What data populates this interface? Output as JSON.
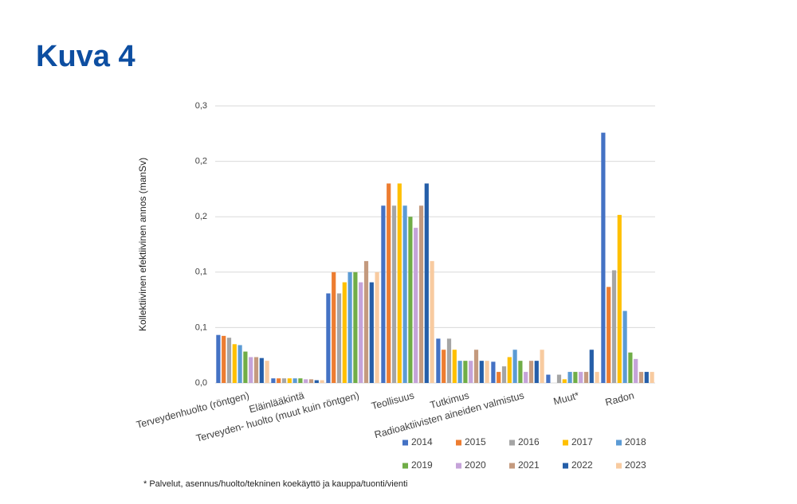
{
  "chart_data": {
    "type": "bar",
    "title": "Kuva 4",
    "y_label": "Kollektiivinen efektiivinen annos (manSv)",
    "footnote": "* Palvelut, asennus/huolto/tekninen koekäyttö ja kauppa/tuonti/vienti",
    "categories": [
      "Terveydenhuolto (röntgen)",
      "Eläinlääkintä",
      "Terveyden- huolto (muut kuin röntgen)",
      "Teollisuus",
      "Tutkimus",
      "Radioaktiivisten aineiden valmistus",
      "Muut*",
      "Radon"
    ],
    "ylim": [
      0,
      0.3
    ],
    "yticks": [
      {
        "value": 0,
        "label": "0,0"
      },
      {
        "value": 0.06,
        "label": "0,1"
      },
      {
        "value": 0.12,
        "label": "0,1"
      },
      {
        "value": 0.18,
        "label": "0,2"
      },
      {
        "value": 0.24,
        "label": "0,2"
      },
      {
        "value": 0.3,
        "label": "0,3"
      }
    ],
    "grid": true,
    "series": [
      {
        "name": "2014",
        "color": "#4472c4",
        "values": [
          0.052,
          0.005,
          0.097,
          0.192,
          0.048,
          0.023,
          0.009,
          0.271
        ]
      },
      {
        "name": "2015",
        "color": "#ed7d31",
        "values": [
          0.051,
          0.005,
          0.12,
          0.216,
          0.036,
          0.012,
          0,
          0.104
        ]
      },
      {
        "name": "2016",
        "color": "#a5a5a5",
        "values": [
          0.049,
          0.005,
          0.097,
          0.192,
          0.048,
          0.018,
          0.009,
          0.122
        ]
      },
      {
        "name": "2017",
        "color": "#ffc000",
        "values": [
          0.042,
          0.005,
          0.109,
          0.216,
          0.036,
          0.028,
          0.004,
          0.182
        ]
      },
      {
        "name": "2018",
        "color": "#5b9bd5",
        "values": [
          0.041,
          0.005,
          0.12,
          0.192,
          0.024,
          0.036,
          0.012,
          0.078
        ]
      },
      {
        "name": "2019",
        "color": "#70ad47",
        "values": [
          0.034,
          0.005,
          0.12,
          0.18,
          0.024,
          0.024,
          0.012,
          0.033
        ]
      },
      {
        "name": "2020",
        "color": "#c5a3d9",
        "values": [
          0.028,
          0.004,
          0.109,
          0.168,
          0.024,
          0.012,
          0.012,
          0.026
        ]
      },
      {
        "name": "2021",
        "color": "#c49a7e",
        "values": [
          0.028,
          0.004,
          0.132,
          0.192,
          0.036,
          0.024,
          0.012,
          0.012
        ]
      },
      {
        "name": "2022",
        "color": "#255ea8",
        "values": [
          0.027,
          0.003,
          0.109,
          0.216,
          0.024,
          0.024,
          0.036,
          0.012
        ]
      },
      {
        "name": "2023",
        "color": "#f8cba0",
        "values": [
          0.024,
          0.003,
          0.12,
          0.132,
          0.024,
          0.036,
          0.012,
          0.012
        ]
      }
    ]
  }
}
